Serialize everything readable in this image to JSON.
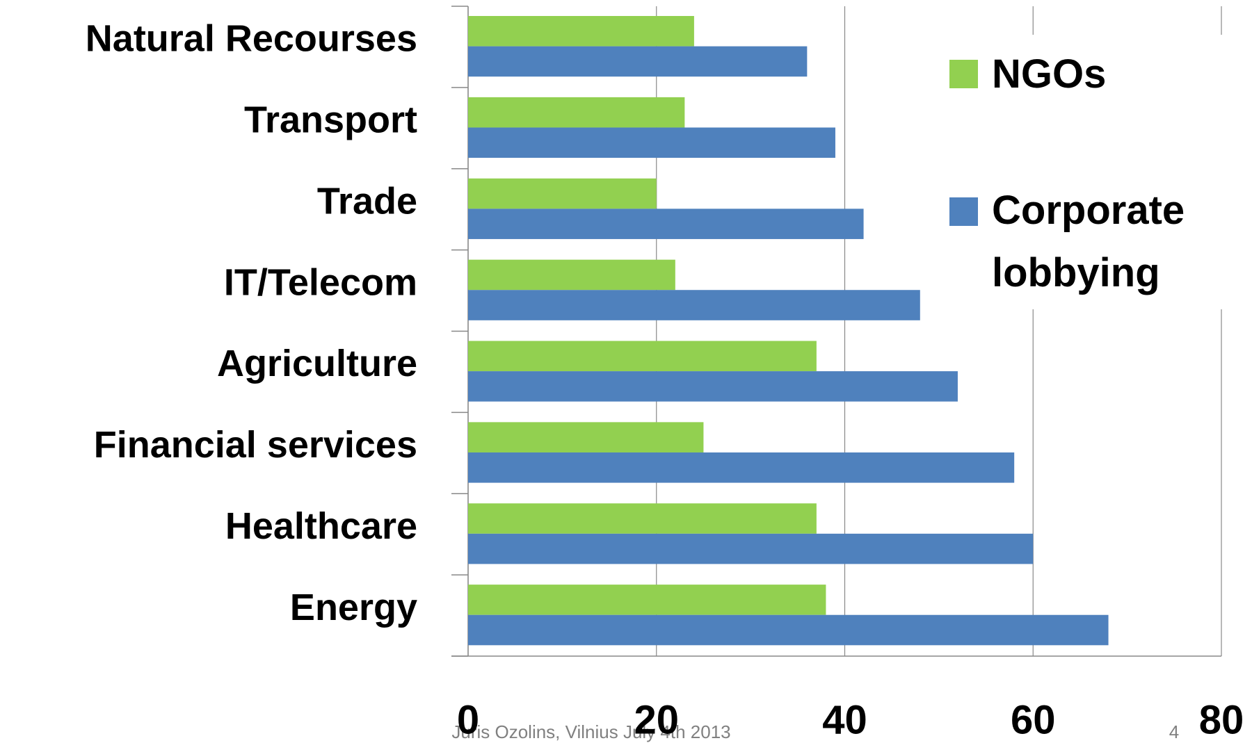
{
  "chart_data": {
    "type": "barh",
    "categories": [
      "Natural  Recourses",
      "Transport",
      "Trade",
      "IT/Telecom",
      "Agriculture",
      "Financial  services",
      "Healthcare",
      "Energy"
    ],
    "series": [
      {
        "name": "NGOs",
        "color": "#92d050",
        "values": [
          24,
          23,
          20,
          22,
          37,
          25,
          37,
          38
        ]
      },
      {
        "name": "Corporate lobbying",
        "color": "#4f81bd",
        "values": [
          36,
          39,
          42,
          48,
          52,
          58,
          60,
          68
        ]
      }
    ],
    "xlim": [
      0,
      80
    ],
    "xticks": [
      0,
      20,
      40,
      60,
      80
    ],
    "grid": true,
    "legend": "upper right"
  },
  "footer": "Juris Ozolins, Vilnius July 4th 2013",
  "page_number": "4"
}
